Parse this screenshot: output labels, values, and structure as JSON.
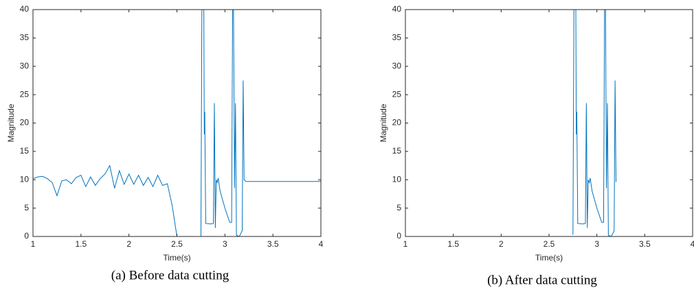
{
  "chart_data": [
    {
      "type": "line",
      "caption": "(a) Before data cutting",
      "xlabel": "Time(s)",
      "ylabel": "Magnitude",
      "xlim": [
        1,
        4
      ],
      "ylim": [
        0,
        40
      ],
      "xticks": [
        1,
        1.5,
        2,
        2.5,
        3,
        3.5,
        4
      ],
      "yticks": [
        0,
        5,
        10,
        15,
        20,
        25,
        30,
        35,
        40
      ],
      "series": [
        {
          "color": "#0072bd",
          "x": [
            1.0,
            1.05,
            1.1,
            1.15,
            1.2,
            1.25,
            1.3,
            1.35,
            1.4,
            1.45,
            1.5,
            1.55,
            1.6,
            1.65,
            1.7,
            1.75,
            1.8,
            1.85,
            1.9,
            1.95,
            2.0,
            2.05,
            2.1,
            2.15,
            2.2,
            2.25,
            2.3,
            2.35,
            2.4,
            2.45,
            2.5,
            2.6,
            2.7,
            2.75,
            2.76,
            2.78,
            2.785,
            2.79,
            2.8,
            2.85,
            2.88,
            2.89,
            2.9,
            2.91,
            2.92,
            2.93,
            2.95,
            3.0,
            3.05,
            3.07,
            3.08,
            3.09,
            3.1,
            3.11,
            3.12,
            3.15,
            3.18,
            3.19,
            3.2,
            3.22,
            3.5,
            4.0
          ],
          "values": [
            10.2,
            10.5,
            10.6,
            10.2,
            9.5,
            7.2,
            9.8,
            10.0,
            9.3,
            10.4,
            10.8,
            8.8,
            10.5,
            9.0,
            10.2,
            11.0,
            12.5,
            8.5,
            11.6,
            9.2,
            11.0,
            9.2,
            10.8,
            9.0,
            10.4,
            8.8,
            10.8,
            9.0,
            9.3,
            5.5,
            0,
            0,
            0,
            0,
            40,
            40,
            18,
            22,
            2.3,
            2.2,
            2.3,
            23.5,
            1.5,
            10,
            9.5,
            10.3,
            8,
            5,
            2.5,
            2.5,
            40,
            40,
            8.5,
            23.5,
            0.2,
            0,
            1,
            27.5,
            10,
            9.7,
            9.7,
            9.7
          ]
        }
      ]
    },
    {
      "type": "line",
      "caption": "(b) After data cutting",
      "xlabel": "Time(s)",
      "ylabel": "Magnitude",
      "xlim": [
        1,
        4
      ],
      "ylim": [
        0,
        40
      ],
      "xticks": [
        1,
        1.5,
        2,
        2.5,
        3,
        3.5,
        4
      ],
      "yticks": [
        0,
        5,
        10,
        15,
        20,
        25,
        30,
        35,
        40
      ],
      "series": [
        {
          "color": "#0072bd",
          "x": [
            2.75,
            2.76,
            2.78,
            2.785,
            2.79,
            2.8,
            2.85,
            2.88,
            2.89,
            2.9,
            2.91,
            2.92,
            2.93,
            2.95,
            3.0,
            3.05,
            3.07,
            3.08,
            3.09,
            3.1,
            3.11,
            3.12,
            3.15,
            3.18,
            3.19,
            3.2
          ],
          "values": [
            0.3,
            40,
            40,
            18,
            22,
            2.3,
            2.2,
            2.3,
            23.5,
            1.5,
            10,
            9.5,
            10.3,
            8,
            5,
            2.5,
            2.5,
            40,
            40,
            8.5,
            23.5,
            0.2,
            0,
            1,
            27.5,
            9.6
          ]
        }
      ]
    }
  ]
}
